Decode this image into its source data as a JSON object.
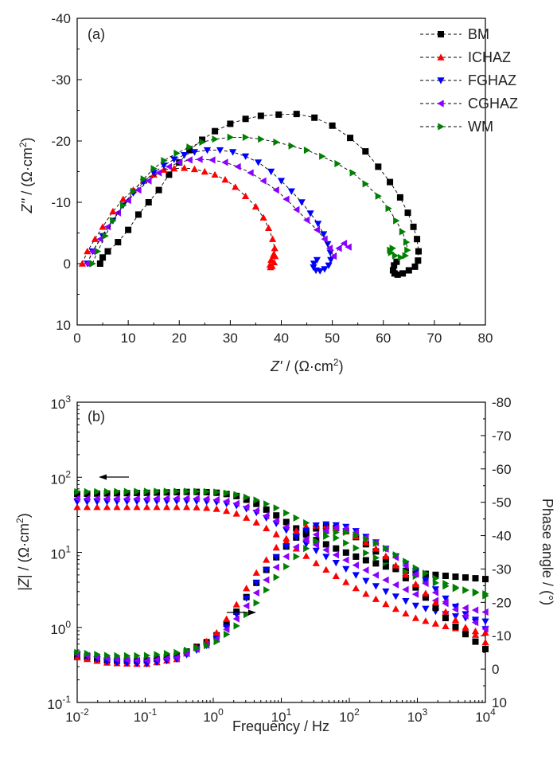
{
  "chart_data": [
    {
      "type": "scatter",
      "panel_label": "(a)",
      "xlabel_main": "Z'",
      "xlabel_unit": "/ (Ω·cm",
      "xlabel_sup": "2",
      "ylabel_main": "Z''",
      "ylabel_unit": "/ (Ω·cm",
      "ylabel_sup": "2",
      "xlim": [
        0,
        80
      ],
      "ylim": [
        10,
        -40
      ],
      "xticks": [
        "0",
        "10",
        "20",
        "30",
        "40",
        "50",
        "60",
        "70",
        "80"
      ],
      "yticks": [
        "-40",
        "-30",
        "-20",
        "-10",
        "0",
        "10"
      ],
      "legend_position": "top-right",
      "series": [
        {
          "name": "BM",
          "color": "#000000",
          "marker": "square",
          "x": [
            4.5,
            5,
            6,
            8,
            10,
            12,
            14,
            16,
            18,
            20,
            22,
            24.5,
            27,
            30,
            33,
            36,
            39.5,
            43,
            46.5,
            50,
            53.5,
            56.5,
            59,
            61.3,
            63.3,
            64.8,
            65.9,
            66.6,
            66.9,
            66.8,
            66.2,
            65,
            63.8,
            62.8,
            62.2,
            61.9,
            62.1,
            62.6
          ],
          "y": [
            0,
            -1,
            -2,
            -3.5,
            -5.5,
            -8,
            -10,
            -12,
            -14.5,
            -16.5,
            -18.5,
            -20.2,
            -21.6,
            -22.8,
            -23.6,
            -24.1,
            -24.3,
            -24.4,
            -23.8,
            -22.5,
            -20.5,
            -18.3,
            -15.8,
            -13.3,
            -10.8,
            -8.3,
            -6,
            -4,
            -2,
            -0.5,
            0.5,
            1.1,
            1.6,
            1.8,
            1.6,
            1.1,
            0.3,
            -0.3
          ]
        },
        {
          "name": "ICHAZ",
          "color": "#ff0000",
          "marker": "triangle-up",
          "x": [
            1,
            2,
            3.5,
            5,
            7,
            9,
            11,
            13,
            15,
            17,
            19,
            21,
            23,
            25,
            27,
            29,
            31,
            33,
            35,
            36.5,
            37.5,
            38.3,
            38.7,
            38.8,
            38.6,
            38.2,
            37.9,
            37.8,
            38,
            38.5
          ],
          "y": [
            0,
            -2,
            -4,
            -6,
            -8.5,
            -10.5,
            -12,
            -13.5,
            -14.5,
            -15.3,
            -15.5,
            -15.6,
            -15.4,
            -15,
            -14.5,
            -13.7,
            -12.5,
            -11,
            -9.3,
            -7.5,
            -5.8,
            -4,
            -2.5,
            -1.2,
            -0.2,
            0.4,
            0.6,
            0.2,
            -0.6,
            -1.5
          ]
        },
        {
          "name": "FGHAZ",
          "color": "#0000ff",
          "marker": "triangle-down",
          "x": [
            2,
            3,
            5,
            7,
            9,
            11,
            13,
            15,
            17,
            19,
            21,
            23,
            25.5,
            28,
            30.5,
            33,
            35.5,
            38,
            40,
            42,
            44,
            45.7,
            47.2,
            48.3,
            49.1,
            49.6,
            49.7,
            49.3,
            48.5,
            47.6,
            46.8,
            46.3,
            46.4,
            47
          ],
          "y": [
            0,
            -2,
            -4.5,
            -7,
            -9.5,
            -11.5,
            -13.3,
            -14.8,
            -16,
            -17,
            -17.7,
            -18.2,
            -18.5,
            -18.5,
            -18.2,
            -17.5,
            -16.5,
            -15,
            -13.5,
            -11.8,
            -10,
            -8.2,
            -6.5,
            -4.8,
            -3.2,
            -1.8,
            -0.6,
            0.3,
            0.9,
            1.2,
            1.1,
            0.6,
            0,
            -0.6
          ]
        },
        {
          "name": "CGHAZ",
          "color": "#8b00ff",
          "marker": "triangle-left",
          "x": [
            2,
            3,
            4.5,
            6,
            8,
            10,
            12,
            14,
            16,
            18,
            20,
            22,
            24,
            26.5,
            29,
            31.5,
            34,
            36.5,
            39,
            41,
            43,
            45,
            47,
            48.5,
            49.5,
            50.3,
            51.3,
            52.3,
            53.2
          ],
          "y": [
            0,
            -2,
            -4,
            -6,
            -8.3,
            -10.3,
            -12,
            -13.5,
            -14.8,
            -15.8,
            -16.5,
            -16.9,
            -17,
            -16.9,
            -16.5,
            -15.8,
            -14.8,
            -13.5,
            -12,
            -10.5,
            -8.8,
            -7.1,
            -5.5,
            -4,
            -2.5,
            -1.2,
            -2.5,
            -3.3,
            -2.7
          ]
        },
        {
          "name": "WM",
          "color": "#008000",
          "marker": "triangle-right",
          "x": [
            3,
            4,
            5.5,
            7,
            9,
            11,
            13,
            15,
            17,
            19.5,
            22,
            24.5,
            27,
            30,
            33,
            36,
            39,
            42,
            45,
            48,
            51,
            54,
            56.5,
            59,
            61,
            62.5,
            63.7,
            64.5,
            64.7,
            64.3,
            63.4,
            62.3,
            61.5,
            61.3,
            61.8
          ],
          "y": [
            0,
            -2,
            -4.5,
            -7,
            -9.5,
            -11.8,
            -13.8,
            -15.5,
            -16.8,
            -18,
            -19,
            -19.8,
            -20.3,
            -20.6,
            -20.6,
            -20.3,
            -19.8,
            -19.2,
            -18.5,
            -17.5,
            -16.3,
            -14.8,
            -13,
            -11,
            -9,
            -7,
            -5.2,
            -3.5,
            -2.2,
            -1.3,
            -1,
            -1.3,
            -1.8,
            -2.2,
            -2.5
          ]
        }
      ]
    },
    {
      "type": "scatter",
      "panel_label": "(b)",
      "xlabel": "Frequency / Hz",
      "ylabel_left_pre": "|",
      "ylabel_left_main": "Z",
      "ylabel_left_post": "| / (Ω·cm",
      "ylabel_left_sup": "2",
      "ylabel_right": "Phase angle / (°)",
      "x_scale": "log",
      "xlim": [
        0.01,
        10000
      ],
      "ylim_left": [
        0.1,
        1000
      ],
      "y_scale_left": "log",
      "ylim_right": [
        10,
        -80
      ],
      "xtick_base": "10",
      "xtick_exps": [
        "-2",
        "-1",
        "0",
        "1",
        "2",
        "3",
        "4"
      ],
      "ytick_left_base": "10",
      "ytick_left_exps": [
        "-1",
        "0",
        "1",
        "2",
        "3"
      ],
      "yticks_right": [
        "-80",
        "-70",
        "-60",
        "-50",
        "-40",
        "-30",
        "-20",
        "-10",
        "0",
        "10"
      ],
      "impedance_series": [
        {
          "name": "BM",
          "color": "#000000",
          "marker": "square",
          "points": [
            [
              0.01,
              60
            ],
            [
              0.1,
              62
            ],
            [
              0.5,
              64
            ],
            [
              1,
              63
            ],
            [
              2,
              58
            ],
            [
              4,
              46
            ],
            [
              8,
              32
            ],
            [
              15,
              22
            ],
            [
              30,
              15
            ],
            [
              60,
              11.5
            ],
            [
              150,
              8.2
            ],
            [
              400,
              6.2
            ],
            [
              1000,
              5.3
            ],
            [
              3000,
              4.8
            ],
            [
              10000,
              4.4
            ]
          ]
        },
        {
          "name": "ICHAZ",
          "color": "#ff0000",
          "marker": "triangle-up",
          "points": [
            [
              0.01,
              40
            ],
            [
              0.1,
              40
            ],
            [
              0.5,
              40
            ],
            [
              1,
              38.5
            ],
            [
              2,
              34
            ],
            [
              4,
              26
            ],
            [
              8,
              18
            ],
            [
              15,
              12
            ],
            [
              30,
              7.5
            ],
            [
              60,
              5
            ],
            [
              150,
              3
            ],
            [
              400,
              1.9
            ],
            [
              1000,
              1.3
            ],
            [
              3000,
              1
            ],
            [
              10000,
              0.85
            ]
          ]
        },
        {
          "name": "FGHAZ",
          "color": "#0000ff",
          "marker": "triangle-down",
          "points": [
            [
              0.01,
              47
            ],
            [
              0.1,
              47.5
            ],
            [
              0.5,
              48
            ],
            [
              1,
              47
            ],
            [
              2,
              43
            ],
            [
              4,
              35
            ],
            [
              8,
              25
            ],
            [
              15,
              17
            ],
            [
              30,
              11
            ],
            [
              60,
              7.5
            ],
            [
              150,
              4.5
            ],
            [
              400,
              2.8
            ],
            [
              1000,
              1.9
            ],
            [
              3000,
              1.45
            ],
            [
              10000,
              1.2
            ]
          ]
        },
        {
          "name": "CGHAZ",
          "color": "#8b00ff",
          "marker": "triangle-left",
          "points": [
            [
              0.01,
              52
            ],
            [
              0.1,
              52
            ],
            [
              0.5,
              52.5
            ],
            [
              1,
              51
            ],
            [
              2,
              46
            ],
            [
              4,
              37
            ],
            [
              8,
              27
            ],
            [
              15,
              19
            ],
            [
              30,
              13
            ],
            [
              60,
              9.5
            ],
            [
              150,
              6.2
            ],
            [
              400,
              4
            ],
            [
              1000,
              2.7
            ],
            [
              3000,
              2
            ],
            [
              10000,
              1.6
            ]
          ]
        },
        {
          "name": "WM",
          "color": "#008000",
          "marker": "triangle-right",
          "points": [
            [
              0.01,
              64
            ],
            [
              0.1,
              65
            ],
            [
              0.5,
              65
            ],
            [
              1,
              64
            ],
            [
              2,
              60
            ],
            [
              4,
              51
            ],
            [
              8,
              40
            ],
            [
              15,
              30
            ],
            [
              30,
              22
            ],
            [
              60,
              16
            ],
            [
              150,
              10.5
            ],
            [
              400,
              6.8
            ],
            [
              1000,
              4.7
            ],
            [
              3000,
              3.4
            ],
            [
              10000,
              2.8
            ]
          ]
        }
      ],
      "phase_series": [
        {
          "name": "BM",
          "color": "#000000",
          "marker": "square",
          "points": [
            [
              0.01,
              -4
            ],
            [
              0.03,
              -2.5
            ],
            [
              0.1,
              -2.5
            ],
            [
              0.3,
              -4
            ],
            [
              1,
              -9
            ],
            [
              2,
              -16
            ],
            [
              4,
              -25
            ],
            [
              8,
              -33
            ],
            [
              15,
              -39
            ],
            [
              30,
              -42
            ],
            [
              50,
              -43
            ],
            [
              100,
              -41
            ],
            [
              300,
              -34
            ],
            [
              1000,
              -24
            ],
            [
              3000,
              -14
            ],
            [
              10000,
              -6
            ]
          ]
        },
        {
          "name": "ICHAZ",
          "color": "#ff0000",
          "marker": "triangle-up",
          "points": [
            [
              0.01,
              -3.5
            ],
            [
              0.03,
              -1.8
            ],
            [
              0.1,
              -1.5
            ],
            [
              0.3,
              -3
            ],
            [
              1,
              -9.5
            ],
            [
              2,
              -18
            ],
            [
              4,
              -28
            ],
            [
              8,
              -36
            ],
            [
              15,
              -41
            ],
            [
              25,
              -43
            ],
            [
              50,
              -43
            ],
            [
              100,
              -41
            ],
            [
              300,
              -35
            ],
            [
              1000,
              -25
            ],
            [
              3000,
              -16
            ],
            [
              10000,
              -8
            ]
          ]
        },
        {
          "name": "FGHAZ",
          "color": "#0000ff",
          "marker": "triangle-down",
          "points": [
            [
              0.01,
              -4.5
            ],
            [
              0.03,
              -2
            ],
            [
              0.1,
              -1.5
            ],
            [
              0.3,
              -3
            ],
            [
              1,
              -8
            ],
            [
              2,
              -15
            ],
            [
              4,
              -25
            ],
            [
              8,
              -33
            ],
            [
              15,
              -39
            ],
            [
              30,
              -43
            ],
            [
              50,
              -43.5
            ],
            [
              100,
              -42.5
            ],
            [
              300,
              -37
            ],
            [
              1000,
              -29
            ],
            [
              3000,
              -20
            ],
            [
              10000,
              -12
            ]
          ]
        },
        {
          "name": "CGHAZ",
          "color": "#8b00ff",
          "marker": "triangle-left",
          "points": [
            [
              0.01,
              -4.5
            ],
            [
              0.03,
              -3
            ],
            [
              0.1,
              -2.5
            ],
            [
              0.3,
              -3.5
            ],
            [
              1,
              -8
            ],
            [
              2,
              -14
            ],
            [
              4,
              -22
            ],
            [
              8,
              -30
            ],
            [
              15,
              -36
            ],
            [
              30,
              -40
            ],
            [
              60,
              -42.5
            ],
            [
              100,
              -42
            ],
            [
              300,
              -37
            ],
            [
              1000,
              -28
            ],
            [
              3000,
              -19
            ],
            [
              10000,
              -12
            ]
          ]
        },
        {
          "name": "WM",
          "color": "#008000",
          "marker": "triangle-right",
          "points": [
            [
              0.01,
              -5
            ],
            [
              0.03,
              -4
            ],
            [
              0.1,
              -4
            ],
            [
              0.3,
              -5
            ],
            [
              1,
              -7.5
            ],
            [
              2,
              -12
            ],
            [
              4,
              -19
            ],
            [
              8,
              -27
            ],
            [
              15,
              -33
            ],
            [
              30,
              -38
            ],
            [
              60,
              -41
            ],
            [
              100,
              -41
            ],
            [
              300,
              -37
            ],
            [
              1000,
              -30
            ],
            [
              3000,
              -25
            ],
            [
              10000,
              -22
            ]
          ]
        }
      ]
    }
  ]
}
